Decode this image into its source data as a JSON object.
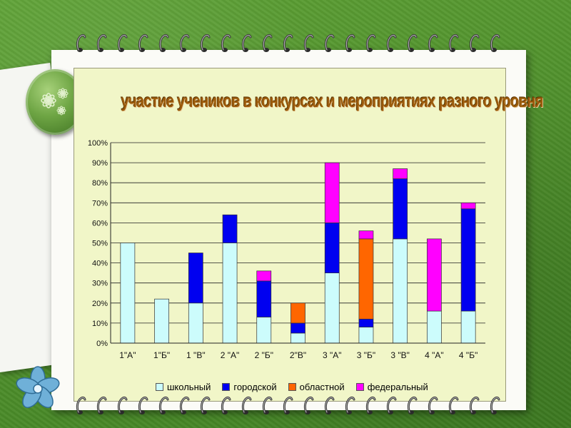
{
  "chart_data": {
    "type": "bar",
    "stacked": true,
    "title": "участие учеников в конкурсах и мероприятиях разного уровня",
    "categories": [
      "1\"А\"",
      "1\"Б\"",
      "1 \"В\"",
      "2 \"А\"",
      "2 \"Б\"",
      "2\"В\"",
      "3 \"А\"",
      "3 \"Б\"",
      "3 \"В\"",
      "4 \"А\"",
      "4 \"Б\""
    ],
    "series": [
      {
        "name": "школьный",
        "color": "#ccfcfc",
        "values": [
          50,
          22,
          20,
          50,
          13,
          5,
          35,
          8,
          52,
          16,
          16
        ]
      },
      {
        "name": "городской",
        "color": "#0000f0",
        "values": [
          0,
          0,
          25,
          14,
          18,
          5,
          25,
          4,
          30,
          0,
          51
        ]
      },
      {
        "name": "областной",
        "color": "#ff6600",
        "values": [
          0,
          0,
          0,
          0,
          0,
          10,
          0,
          40,
          0,
          0,
          0
        ]
      },
      {
        "name": "федеральный",
        "color": "#ff00ff",
        "values": [
          0,
          0,
          0,
          0,
          5,
          0,
          30,
          4,
          5,
          36,
          3
        ]
      }
    ],
    "ylim": [
      0,
      100
    ],
    "yticks": [
      "0%",
      "10%",
      "20%",
      "30%",
      "40%",
      "50%",
      "60%",
      "70%",
      "80%",
      "90%",
      "100%"
    ],
    "grid": true,
    "legend_position": "bottom"
  },
  "colors": {
    "plot_background": "#f1f6c8",
    "paper": "#fbfbf7",
    "background": "#4f8f2a"
  },
  "icons": [
    "spiral-ring-icon",
    "flower-medallion-icon",
    "blue-flower-icon"
  ]
}
